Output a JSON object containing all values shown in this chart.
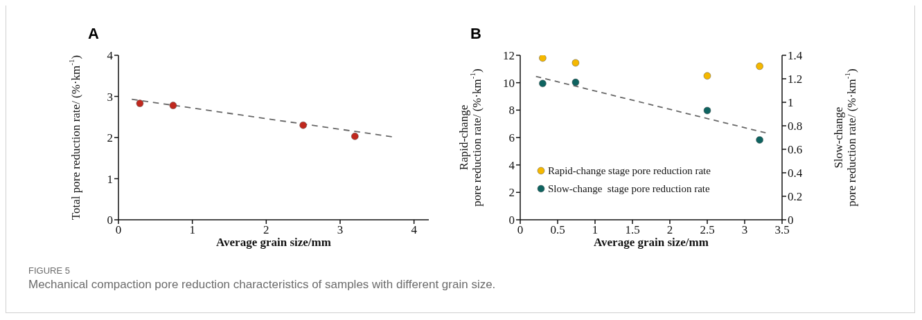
{
  "chart_data": [
    {
      "type": "scatter",
      "title": "A",
      "xlabel": "Average grain size/mm",
      "ylabel": "Total pore reduction rate/ (%·km$^{-1}$)",
      "xlim": [
        0,
        4.2
      ],
      "xticks": [
        0,
        1,
        2,
        3,
        4
      ],
      "ylim": [
        0,
        4
      ],
      "yticks": [
        0,
        1,
        2,
        3,
        4
      ],
      "grid": false,
      "legend": false,
      "marker": "circle",
      "series": [
        {
          "type": "scatter",
          "color": "#c0281e",
          "x": [
            0.29,
            0.74,
            2.5,
            3.2
          ],
          "values": [
            2.83,
            2.78,
            2.3,
            2.03
          ]
        },
        {
          "type": "line",
          "color": "#666666",
          "x": [
            0.18,
            3.7
          ],
          "values": [
            2.93,
            2.02
          ],
          "line_style": "dashed",
          "marker": "none"
        }
      ]
    },
    {
      "type": "scatter",
      "title": "B",
      "xlabel": "Average grain size/mm",
      "ylabel": "Rapid-change\npore reduction rate/ (%·km$^{-1}$)",
      "y2label": "Slow-change\npore reduction rate/ (%·km$^{-1}$)",
      "xlim": [
        0,
        3.5
      ],
      "xticks": [
        0,
        0.5,
        1,
        1.5,
        2,
        2.5,
        3,
        3.5
      ],
      "ylim": [
        0,
        12
      ],
      "yticks": [
        0,
        2,
        4,
        6,
        8,
        10,
        12
      ],
      "y2lim": [
        0,
        1.4
      ],
      "y2ticks": [
        0,
        0.2,
        0.4,
        0.6,
        0.8,
        1,
        1.2,
        1.4
      ],
      "grid": false,
      "legend": "bottom left",
      "marker": "circle",
      "series": [
        {
          "type": "scatter",
          "name": "Rapid-change stage pore reduction rate",
          "color": "#f5b800",
          "x": [
            0.3,
            0.74,
            2.5,
            3.2
          ],
          "values": [
            11.8,
            11.45,
            10.5,
            11.2
          ]
        },
        {
          "type": "scatter",
          "name": "Slow-change  stage pore reduction rate",
          "color": "#0e6360",
          "axis": "y2",
          "x": [
            0.3,
            0.74,
            2.5,
            3.2
          ],
          "values": [
            1.16,
            1.17,
            0.93,
            0.68
          ]
        },
        {
          "type": "line",
          "color": "#666666",
          "axis": "y2",
          "x": [
            0.21,
            3.28
          ],
          "values": [
            1.22,
            0.74
          ],
          "line_style": "dashed",
          "marker": "none"
        }
      ],
      "annotations": [
        "FIGURE 5",
        "Mechanical compaction pore reduction characteristics of samples with different grain size."
      ]
    }
  ]
}
